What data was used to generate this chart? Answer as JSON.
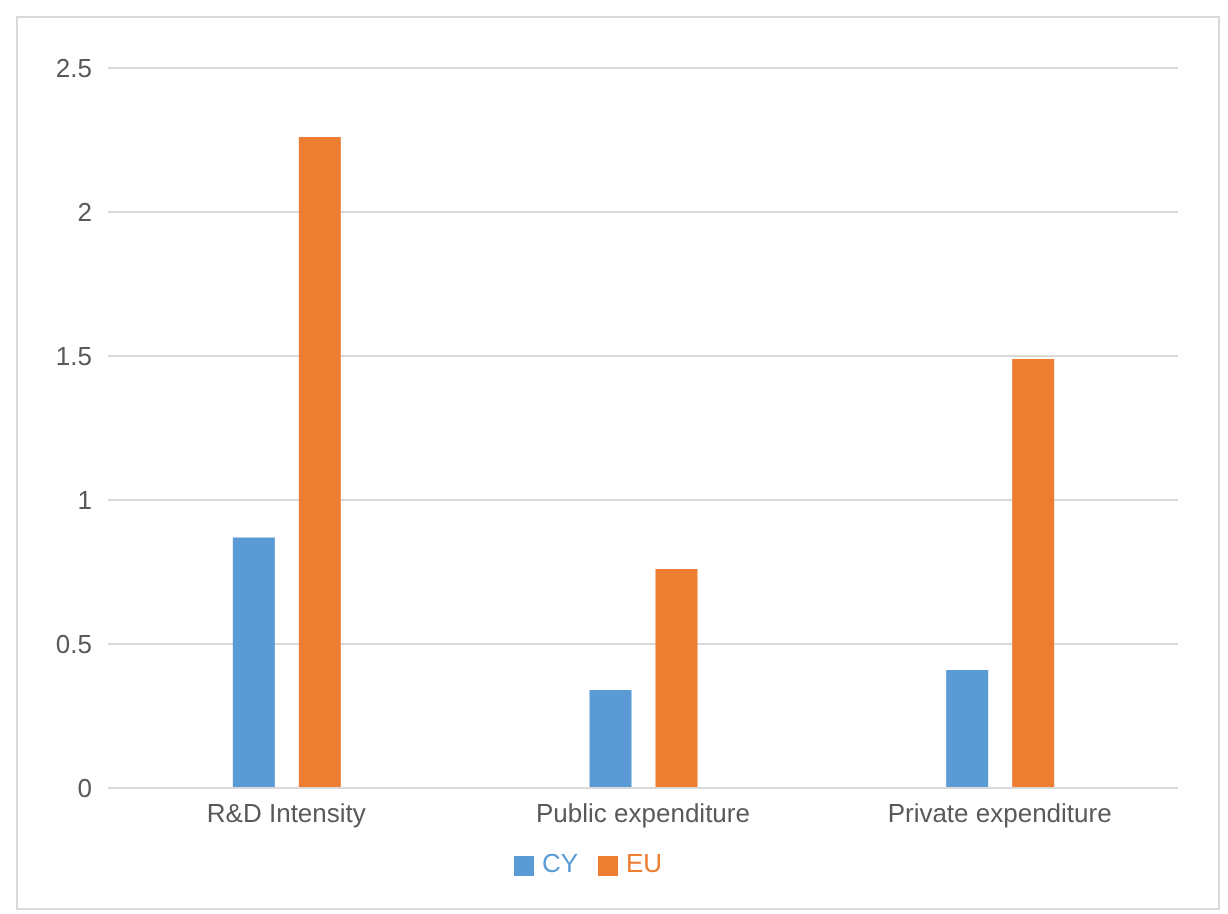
{
  "chart_data": {
    "type": "bar",
    "categories": [
      "R&D Intensity",
      "Public expenditure",
      "Private expenditure"
    ],
    "series": [
      {
        "name": "CY",
        "color": "#5b9bd5",
        "values": [
          0.87,
          0.34,
          0.41
        ]
      },
      {
        "name": "EU",
        "color": "#ed7d31",
        "values": [
          2.26,
          0.76,
          1.49
        ]
      }
    ],
    "ylim": [
      0,
      2.5
    ],
    "yticks": [
      0,
      {
        "value": 0.5,
        "label": "0.5"
      },
      1,
      {
        "value": 1.5,
        "label": "1.5"
      },
      2,
      {
        "value": 2.5,
        "label": "2.5"
      }
    ],
    "grid": "y",
    "legend": "bottom"
  }
}
